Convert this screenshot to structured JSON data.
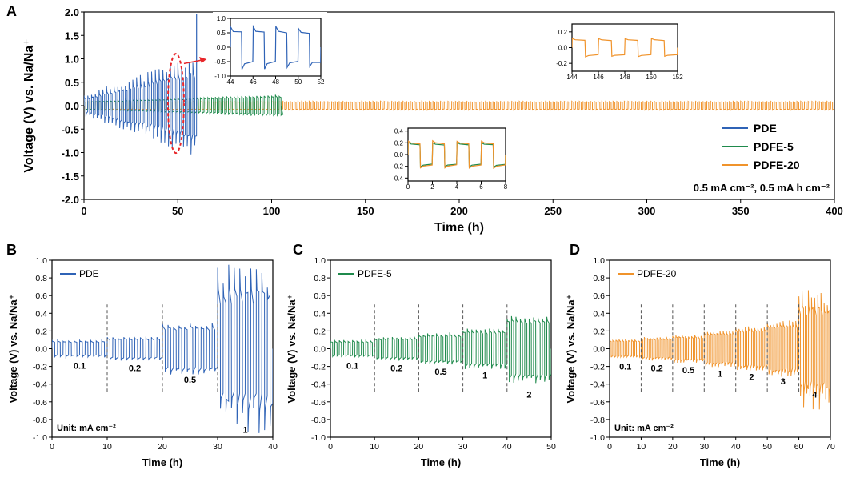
{
  "colors": {
    "pde": "#2f63b6",
    "pdfe5": "#1f8a4c",
    "pdfe20": "#f0932b",
    "callout": "#e8262a"
  },
  "chart_data": [
    {
      "panel": "A",
      "type": "line",
      "title": "",
      "xlabel": "Time (h)",
      "ylabel": "Voltage (V) vs. Na/Na⁺",
      "xlim": [
        0,
        400
      ],
      "ylim": [
        -2.0,
        2.0
      ],
      "xticks": [
        "0",
        "50",
        "100",
        "150",
        "200",
        "250",
        "300",
        "350",
        "400"
      ],
      "yticks": [
        "2.0",
        "1.5",
        "1.0",
        "0.5",
        "0.0",
        "-0.5",
        "-1.0",
        "-1.5",
        "-2.0"
      ],
      "legend": [
        "PDE",
        "PDFE-5",
        "PDFE-20"
      ],
      "legend_position": "bottom-right",
      "annotation": "0.5 mA cm⁻², 0.5 mA h cm⁻²",
      "series": [
        {
          "name": "PDE",
          "t_start": 0,
          "t_end": 60,
          "amp_start": 0.15,
          "amp_end": 0.72,
          "end_spike": 1.95
        },
        {
          "name": "PDFE-5",
          "t_start": 0,
          "t_end": 105,
          "amp_start": 0.08,
          "amp_end": 0.2
        },
        {
          "name": "PDFE-20",
          "t_start": 0,
          "t_end": 400,
          "amp_start": 0.08,
          "amp_end": 0.08
        }
      ],
      "insets": [
        {
          "name": "PDE 44-52 h",
          "xlim": [
            44,
            52
          ],
          "ylim": [
            -1.0,
            1.0
          ],
          "xticks": [
            "44",
            "46",
            "48",
            "50",
            "52"
          ],
          "yticks": [
            "1.0",
            "0.5",
            "0.0",
            "-0.5",
            "-1.0"
          ],
          "series": [
            "PDE"
          ],
          "amp": 0.55
        },
        {
          "name": "PDFE-20 144-152 h",
          "xlim": [
            144,
            152
          ],
          "ylim": [
            -0.3,
            0.3
          ],
          "xticks": [
            "144",
            "146",
            "148",
            "150",
            "152"
          ],
          "yticks": [
            "0.2",
            "0.0",
            "-0.2"
          ],
          "series": [
            "PDFE-20"
          ],
          "amp": 0.1
        },
        {
          "name": "0-8 h",
          "xlim": [
            0,
            8
          ],
          "ylim": [
            -0.45,
            0.45
          ],
          "xticks": [
            "0",
            "2",
            "4",
            "6",
            "8"
          ],
          "yticks": [
            "0.4",
            "0.2",
            "0.0",
            "-0.2",
            "-0.4"
          ],
          "series": [
            "PDFE-5",
            "PDFE-20"
          ],
          "amp": 0.18
        }
      ]
    },
    {
      "panel": "B",
      "type": "line",
      "xlabel": "Time (h)",
      "ylabel": "Voltage (V) vs. Na/Na⁺",
      "xlim": [
        0,
        40
      ],
      "ylim": [
        -1.0,
        1.0
      ],
      "xticks": [
        "0",
        "10",
        "20",
        "30",
        "40"
      ],
      "yticks": [
        "1.0",
        "0.8",
        "0.6",
        "0.4",
        "0.2",
        "0.0",
        "-0.2",
        "-0.4",
        "-0.6",
        "-0.8",
        "-1.0"
      ],
      "legend": [
        "PDE"
      ],
      "unit_note": "Unit: mA cm⁻²",
      "rates": [
        {
          "label": "0.1",
          "t0": 0,
          "t1": 10,
          "amp": 0.08
        },
        {
          "label": "0.2",
          "t0": 10,
          "t1": 20,
          "amp": 0.11
        },
        {
          "label": "0.5",
          "t0": 20,
          "t1": 30,
          "amp": 0.24
        },
        {
          "label": "1",
          "t0": 30,
          "t1": 40,
          "amp": 0.62
        }
      ],
      "separators": [
        10,
        20,
        30
      ]
    },
    {
      "panel": "C",
      "type": "line",
      "xlabel": "Time (h)",
      "ylabel": "Voltage (V) vs. Na/Na⁺",
      "xlim": [
        0,
        50
      ],
      "ylim": [
        -1.0,
        1.0
      ],
      "xticks": [
        "0",
        "10",
        "20",
        "30",
        "40",
        "50"
      ],
      "yticks": [
        "1.0",
        "0.8",
        "0.6",
        "0.4",
        "0.2",
        "0.0",
        "-0.2",
        "-0.4",
        "-0.6",
        "-0.8",
        "-1.0"
      ],
      "legend": [
        "PDFE-5"
      ],
      "rates": [
        {
          "label": "0.1",
          "t0": 0,
          "t1": 10,
          "amp": 0.08
        },
        {
          "label": "0.2",
          "t0": 10,
          "t1": 20,
          "amp": 0.11
        },
        {
          "label": "0.5",
          "t0": 20,
          "t1": 30,
          "amp": 0.15
        },
        {
          "label": "1",
          "t0": 30,
          "t1": 40,
          "amp": 0.19
        },
        {
          "label": "2",
          "t0": 40,
          "t1": 50,
          "amp": 0.32
        }
      ],
      "separators": [
        10,
        20,
        30,
        40
      ]
    },
    {
      "panel": "D",
      "type": "line",
      "xlabel": "Time (h)",
      "ylabel": "Voltage (V) vs. Na/Na⁺",
      "xlim": [
        0,
        70
      ],
      "ylim": [
        -1.0,
        1.0
      ],
      "xticks": [
        "0",
        "10",
        "20",
        "30",
        "40",
        "50",
        "60",
        "70"
      ],
      "yticks": [
        "1.0",
        "0.8",
        "0.6",
        "0.4",
        "0.2",
        "0.0",
        "-0.2",
        "-0.4",
        "-0.6",
        "-0.8",
        "-1.0"
      ],
      "legend": [
        "PDFE-20"
      ],
      "unit_note": "Unit: mA cm⁻²",
      "rates": [
        {
          "label": "0.1",
          "t0": 0,
          "t1": 10,
          "amp": 0.09
        },
        {
          "label": "0.2",
          "t0": 10,
          "t1": 20,
          "amp": 0.11
        },
        {
          "label": "0.5",
          "t0": 20,
          "t1": 30,
          "amp": 0.13
        },
        {
          "label": "1",
          "t0": 30,
          "t1": 40,
          "amp": 0.17
        },
        {
          "label": "2",
          "t0": 40,
          "t1": 50,
          "amp": 0.21
        },
        {
          "label": "3",
          "t0": 50,
          "t1": 60,
          "amp": 0.26
        },
        {
          "label": "4",
          "t0": 60,
          "t1": 70,
          "amp": 0.45
        }
      ],
      "separators": [
        10,
        20,
        30,
        40,
        50,
        60
      ]
    }
  ]
}
